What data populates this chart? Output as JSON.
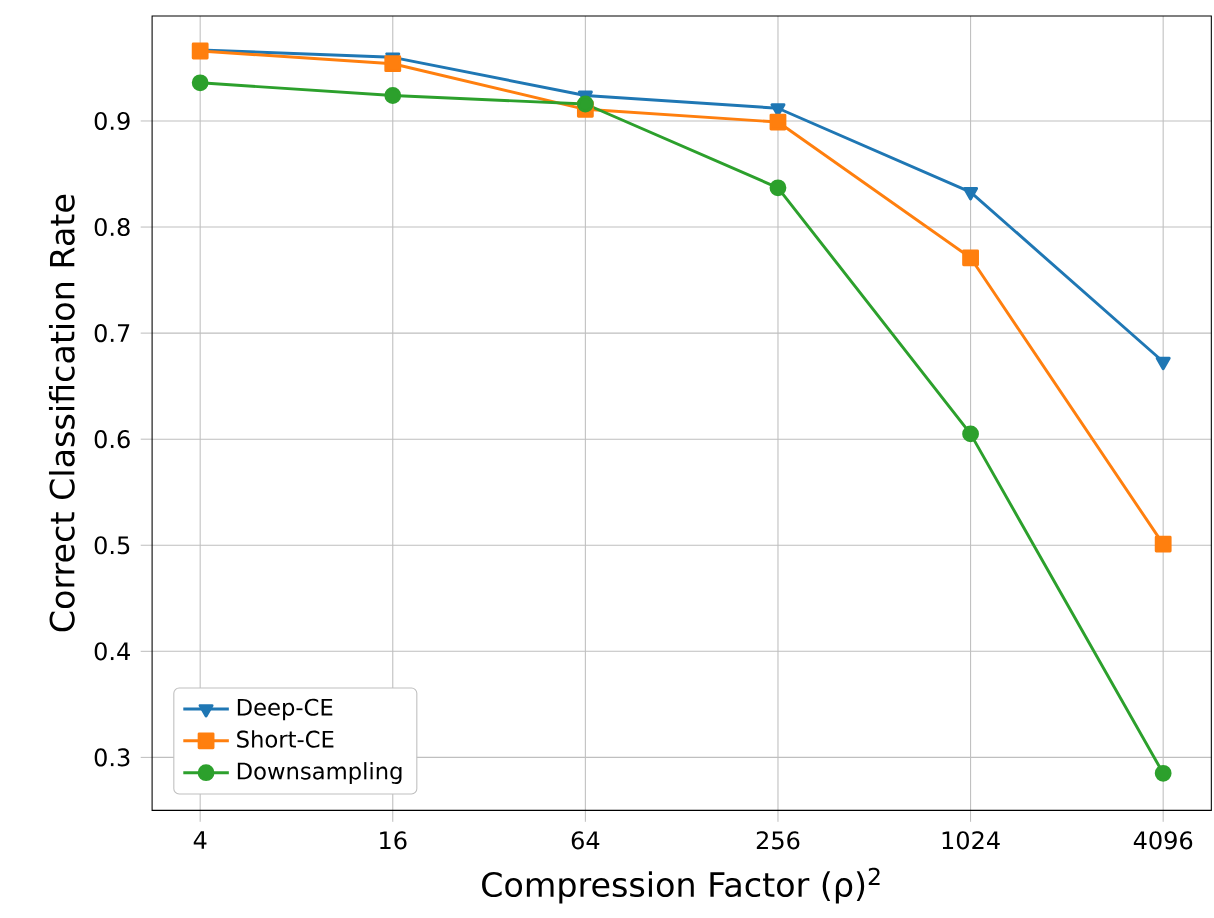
{
  "chart_data": {
    "type": "line",
    "xlabel": "Compression Factor (ρ)$^{2}$",
    "ylabel": "Correct Classification Rate",
    "x": [
      4,
      16,
      64,
      256,
      1024,
      4096
    ],
    "series": [
      {
        "name": "Deep-CE",
        "color": "#1f77b4",
        "marker": "triangle",
        "values": [
          0.967,
          0.96,
          0.924,
          0.912,
          0.833,
          0.673
        ]
      },
      {
        "name": "Short-CE",
        "color": "#ff7f0e",
        "marker": "square",
        "values": [
          0.966,
          0.954,
          0.911,
          0.899,
          0.771,
          0.501
        ]
      },
      {
        "name": "Downsampling",
        "color": "#2ca02c",
        "marker": "circle",
        "values": [
          0.936,
          0.924,
          0.916,
          0.837,
          0.605,
          0.285
        ]
      }
    ],
    "log": "x",
    "xlim": [
      2.83,
      5793
    ],
    "ylim": [
      0.25,
      0.999
    ],
    "xticks": [
      4,
      16,
      64,
      256,
      1024,
      4096
    ],
    "yticks": [
      0.3,
      0.4,
      0.5,
      0.6,
      0.7,
      0.8,
      0.9
    ],
    "grid": true,
    "legend": "bottom left",
    "line_style": "solid"
  }
}
